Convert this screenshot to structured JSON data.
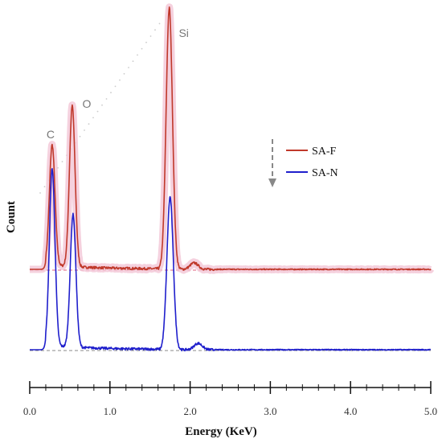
{
  "chart_data": {
    "type": "line",
    "xlabel": "Energy (KeV)",
    "ylabel": "Count",
    "xlim": [
      0,
      5
    ],
    "xticks": [
      "0.0",
      "1.0",
      "2.0",
      "3.0",
      "4.0",
      "5.0"
    ],
    "grid": false,
    "legend_position": "upper-right",
    "peak_labels": [
      {
        "text": "C",
        "x": 0.28
      },
      {
        "text": "O",
        "x": 0.53
      },
      {
        "text": "Si",
        "x": 1.74
      }
    ],
    "series": [
      {
        "name": "SA-F",
        "color": "#c0392b",
        "halo_color": "#f3c6d6",
        "baseline_color": "#e0607e",
        "peaks": [
          {
            "x": 0.28,
            "height": 150,
            "width": 0.035
          },
          {
            "x": 0.53,
            "height": 200,
            "width": 0.035
          },
          {
            "x": 1.74,
            "height": 325,
            "width": 0.04
          },
          {
            "x": 2.05,
            "height": 8,
            "width": 0.05
          }
        ]
      },
      {
        "name": "SA-N",
        "color": "#1f1fcc",
        "baseline_color": "#888888",
        "peaks": [
          {
            "x": 0.28,
            "height": 220,
            "width": 0.035
          },
          {
            "x": 0.54,
            "height": 165,
            "width": 0.035
          },
          {
            "x": 1.75,
            "height": 190,
            "width": 0.04
          },
          {
            "x": 2.1,
            "height": 8,
            "width": 0.05
          }
        ]
      }
    ],
    "colors": {
      "arrow": "#888888",
      "dots": "#cccccc",
      "axis": "#111111"
    }
  }
}
